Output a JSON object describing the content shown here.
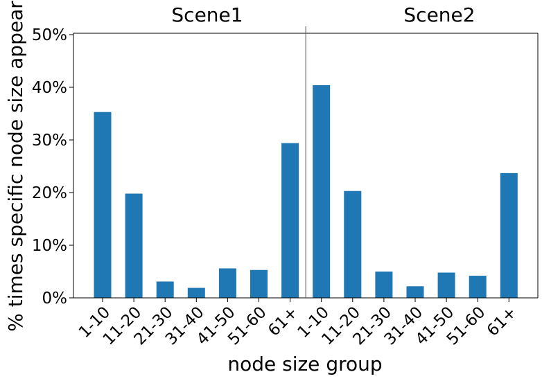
{
  "chart_data": {
    "type": "bar",
    "xlabel": "node size group",
    "ylabel": "% times specific node size appear",
    "ylim": [
      0,
      50
    ],
    "yticks": [
      0,
      10,
      20,
      30,
      40,
      50
    ],
    "ytick_labels": [
      "0%",
      "10%",
      "20%",
      "30%",
      "40%",
      "50%"
    ],
    "bar_color": "#1f77b4",
    "grid": false,
    "panels": [
      {
        "title": "Scene1",
        "categories": [
          "1-10",
          "11-20",
          "21-30",
          "31-40",
          "41-50",
          "51-60",
          "61+"
        ],
        "values": [
          35.3,
          19.8,
          3.1,
          1.9,
          5.6,
          5.3,
          29.4
        ]
      },
      {
        "title": "Scene2",
        "categories": [
          "1-10",
          "11-20",
          "21-30",
          "31-40",
          "41-50",
          "51-60",
          "61+"
        ],
        "values": [
          40.4,
          20.3,
          5.0,
          2.2,
          4.8,
          4.2,
          23.7
        ]
      }
    ]
  }
}
